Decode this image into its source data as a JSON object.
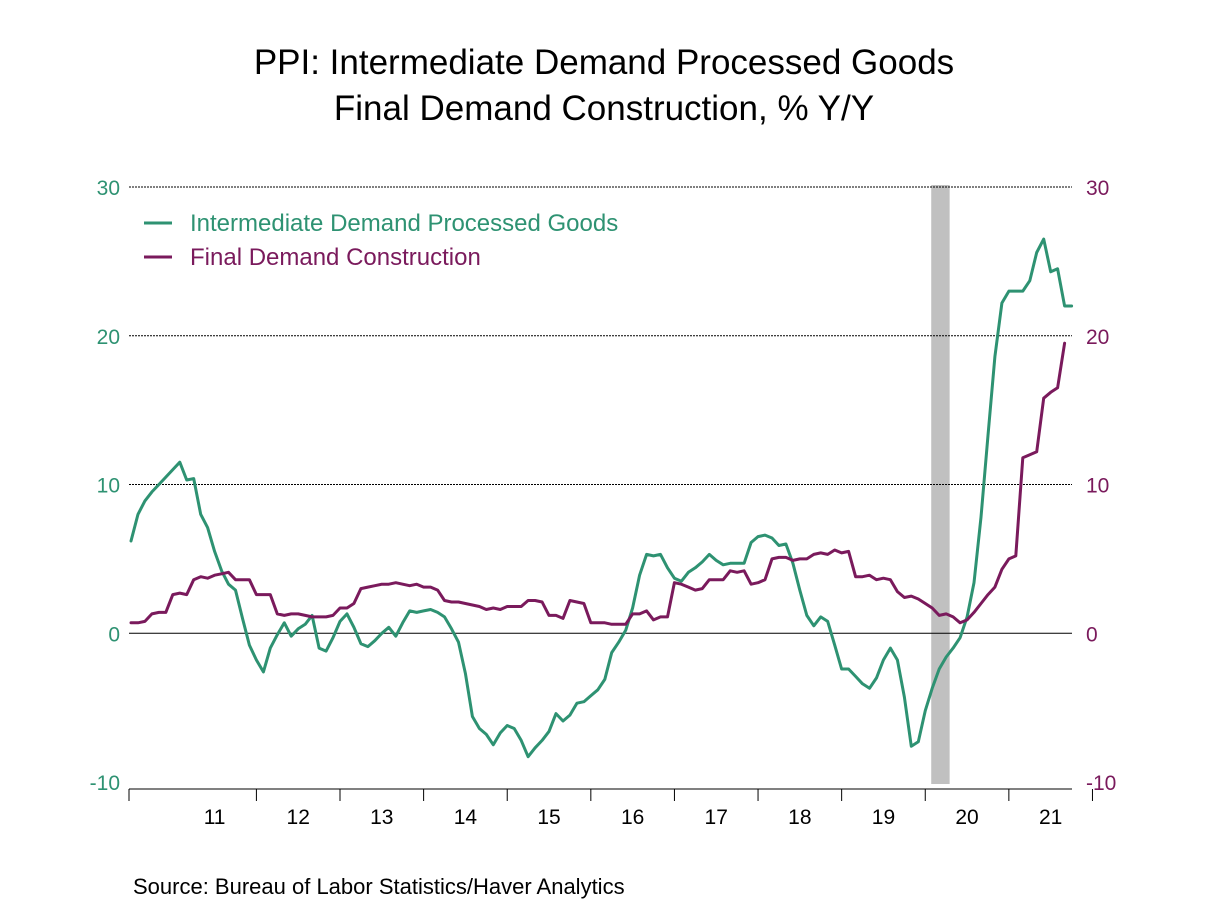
{
  "title_line1": "PPI: Intermediate Demand Processed Goods",
  "title_line2": "Final Demand Construction, % Y/Y",
  "source": "Source:  Bureau of Labor Statistics/Haver Analytics",
  "colors": {
    "series1": "#2e9272",
    "series2": "#7a1a5c",
    "axis_left": "#2e9272",
    "axis_right": "#7a1a5c",
    "recession": "#c0c0c0"
  },
  "chart_data": {
    "type": "line",
    "x_start": "2010-07",
    "frequency": "monthly",
    "xlim": [
      "2010-07",
      "2021-10"
    ],
    "x_tick_labels": [
      "11",
      "12",
      "13",
      "14",
      "15",
      "16",
      "17",
      "18",
      "19",
      "20",
      "21"
    ],
    "ylim": [
      -10,
      30
    ],
    "y_ticks": [
      -10,
      0,
      10,
      20,
      30
    ],
    "y_ticks_right": [
      -10,
      0,
      10,
      20,
      30
    ],
    "grid": true,
    "legend_position": "top-left",
    "recession": {
      "start": "2020-02",
      "end": "2020-04"
    },
    "series": [
      {
        "name": "Intermediate Demand Processed Goods",
        "axis": "left",
        "values": [
          6.2,
          8.0,
          8.9,
          9.5,
          10.0,
          10.5,
          11.0,
          11.5,
          10.3,
          10.4,
          8.0,
          7.1,
          5.5,
          4.2,
          3.3,
          2.9,
          1.0,
          -0.8,
          -1.8,
          -2.6,
          -1.0,
          -0.1,
          0.7,
          -0.2,
          0.3,
          0.6,
          1.2,
          -1.0,
          -1.2,
          -0.3,
          0.8,
          1.3,
          0.4,
          -0.7,
          -0.9,
          -0.5,
          0.0,
          0.4,
          -0.2,
          0.7,
          1.5,
          1.4,
          1.5,
          1.6,
          1.4,
          1.1,
          0.3,
          -0.6,
          -2.7,
          -5.6,
          -6.4,
          -6.8,
          -7.5,
          -6.7,
          -6.2,
          -6.4,
          -7.2,
          -8.3,
          -7.7,
          -7.2,
          -6.6,
          -5.4,
          -5.9,
          -5.5,
          -4.7,
          -4.6,
          -4.2,
          -3.8,
          -3.1,
          -1.3,
          -0.6,
          0.2,
          1.7,
          3.9,
          5.3,
          5.2,
          5.3,
          4.4,
          3.7,
          3.5,
          4.1,
          4.4,
          4.8,
          5.3,
          4.9,
          4.6,
          4.7,
          4.7,
          4.7,
          6.1,
          6.5,
          6.6,
          6.4,
          5.9,
          6.0,
          4.7,
          2.9,
          1.2,
          0.5,
          1.1,
          0.8,
          -0.8,
          -2.4,
          -2.4,
          -2.9,
          -3.4,
          -3.7,
          -3.0,
          -1.8,
          -1.0,
          -1.8,
          -4.3,
          -7.6,
          -7.3,
          -5.2,
          -3.7,
          -2.4,
          -1.6,
          -1.0,
          -0.3,
          1.1,
          3.4,
          7.8,
          13.3,
          18.6,
          22.2,
          23.0,
          23.0,
          23.0,
          23.7,
          25.6,
          26.5,
          24.3,
          24.5,
          22.0,
          22.0
        ]
      },
      {
        "name": "Final Demand Construction",
        "axis": "right",
        "values": [
          0.7,
          0.7,
          0.8,
          1.3,
          1.4,
          1.4,
          2.6,
          2.7,
          2.6,
          3.6,
          3.8,
          3.7,
          3.9,
          4.0,
          4.1,
          3.6,
          3.6,
          3.6,
          2.6,
          2.6,
          2.6,
          1.3,
          1.2,
          1.3,
          1.3,
          1.2,
          1.1,
          1.1,
          1.1,
          1.2,
          1.7,
          1.7,
          2.0,
          3.0,
          3.1,
          3.2,
          3.3,
          3.3,
          3.4,
          3.3,
          3.2,
          3.3,
          3.1,
          3.1,
          2.9,
          2.2,
          2.1,
          2.1,
          2.0,
          1.9,
          1.8,
          1.6,
          1.7,
          1.6,
          1.8,
          1.8,
          1.8,
          2.2,
          2.2,
          2.1,
          1.2,
          1.2,
          1.0,
          2.2,
          2.1,
          2.0,
          0.7,
          0.7,
          0.7,
          0.6,
          0.6,
          0.6,
          1.3,
          1.3,
          1.5,
          0.9,
          1.1,
          1.1,
          3.4,
          3.3,
          3.1,
          2.9,
          3.0,
          3.6,
          3.6,
          3.6,
          4.2,
          4.1,
          4.2,
          3.3,
          3.4,
          3.6,
          5.0,
          5.1,
          5.1,
          4.9,
          5.0,
          5.0,
          5.3,
          5.4,
          5.3,
          5.6,
          5.4,
          5.5,
          3.8,
          3.8,
          3.9,
          3.6,
          3.7,
          3.6,
          2.8,
          2.4,
          2.5,
          2.3,
          2.0,
          1.7,
          1.2,
          1.3,
          1.1,
          0.7,
          0.9,
          1.4,
          2.0,
          2.6,
          3.1,
          4.3,
          5.0,
          5.2,
          11.8,
          12.0,
          12.2,
          15.8,
          16.2,
          16.5,
          19.5
        ]
      }
    ]
  }
}
